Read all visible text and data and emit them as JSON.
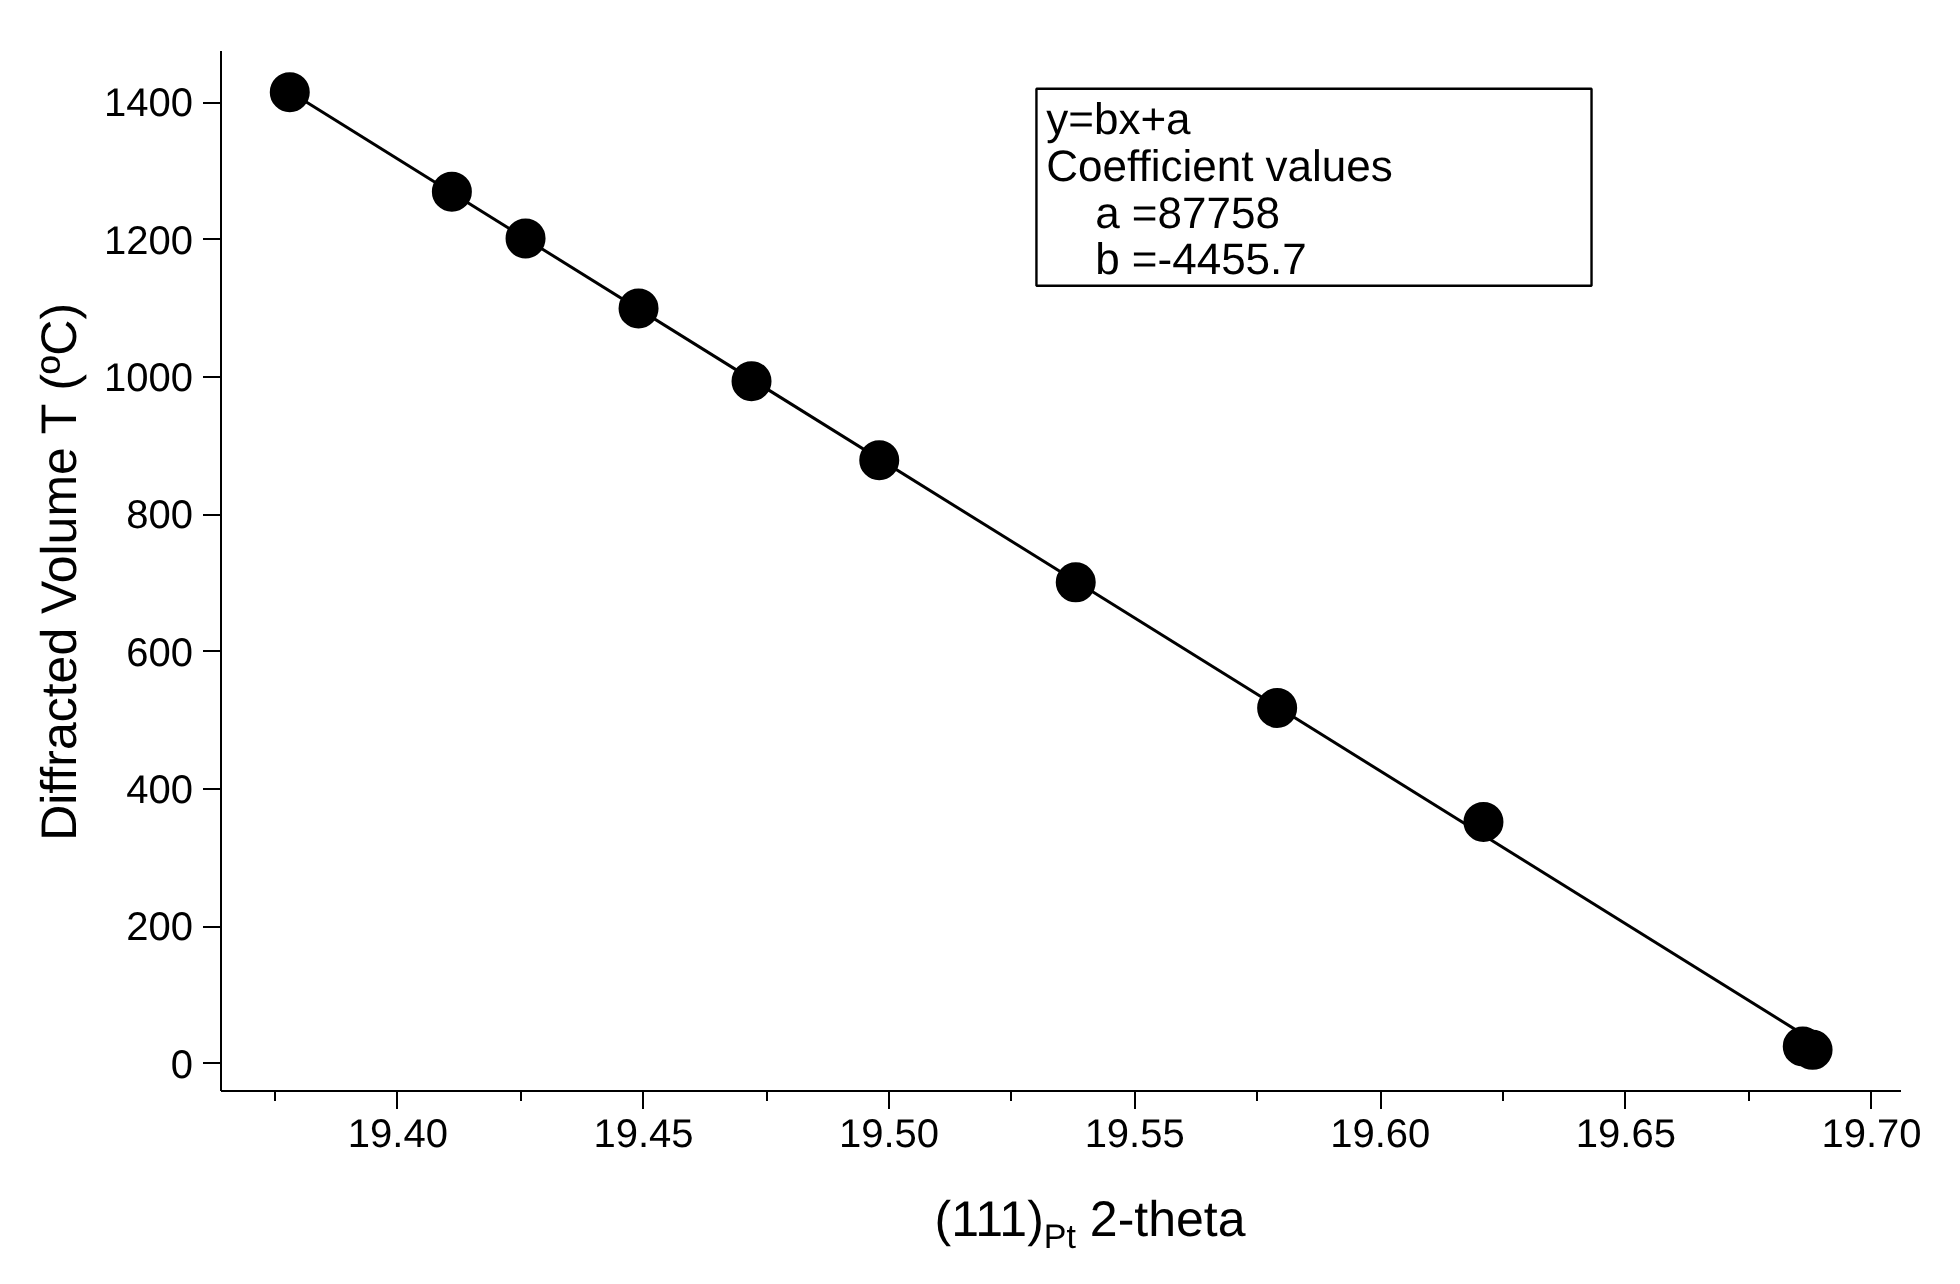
{
  "chart_data": {
    "type": "scatter",
    "xlabel": "(111)$_{Pt}$ 2-theta",
    "ylabel": "Diffracted Volume T (ºC)",
    "x": [
      19.378,
      19.411,
      19.426,
      19.449,
      19.472,
      19.498,
      19.538,
      19.579,
      19.621,
      19.686,
      19.688
    ],
    "series": [
      {
        "color": "#000000",
        "values": [
          1415,
          1270,
          1202,
          1100,
          994,
          879,
          701,
          518,
          352,
          25,
          20
        ],
        "marker": "circle"
      },
      {
        "type": "line",
        "color": "#000000",
        "x": [
          19.375,
          19.69
        ],
        "values": [
          1429,
          25
        ]
      }
    ],
    "annotations": [
      "y=bx+a",
      "Coefficient values",
      "    a =87758",
      "    b =-4455.7"
    ],
    "xlim": [
      19.364,
      19.706
    ],
    "ylim": [
      -40,
      1475
    ],
    "xticks": [
      {
        "value": 19.4,
        "label": "19.40"
      },
      {
        "value": 19.45,
        "label": "19.45"
      },
      {
        "value": 19.5,
        "label": "19.50"
      },
      {
        "value": 19.55,
        "label": "19.55"
      },
      {
        "value": 19.6,
        "label": "19.60"
      },
      {
        "value": 19.65,
        "label": "19.65"
      },
      {
        "value": 19.7,
        "label": "19.70"
      }
    ],
    "yticks": [
      0,
      200,
      400,
      600,
      800,
      1000,
      1200,
      1400
    ],
    "grid": false
  }
}
